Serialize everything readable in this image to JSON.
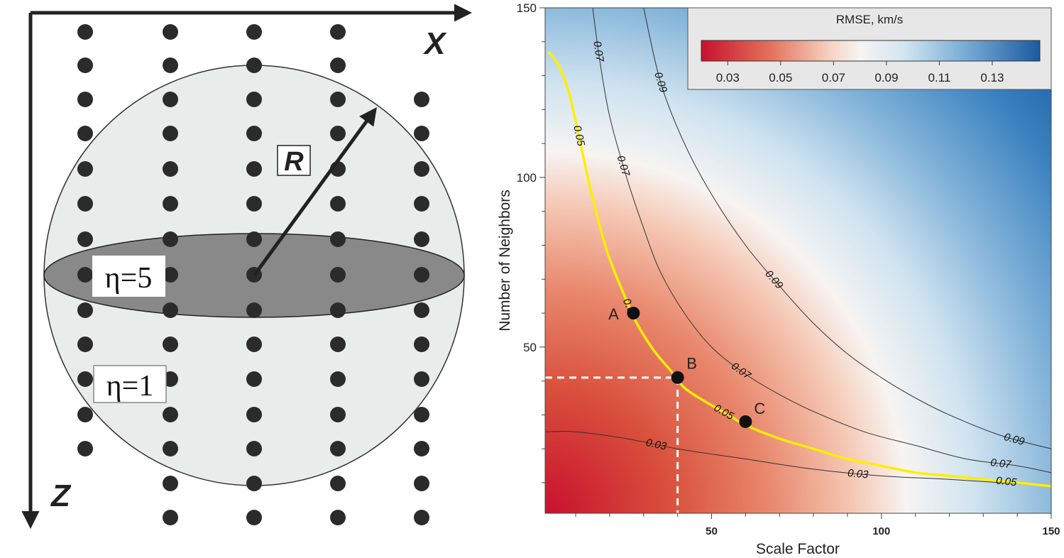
{
  "diagram": {
    "x_axis_label": "X",
    "z_axis_label": "Z",
    "radius_label": "R",
    "eta_inner": "η=5",
    "eta_outer": "η=1"
  },
  "chart_data": {
    "type": "heatmap",
    "xlabel": "Scale Factor",
    "ylabel": "Number of Neighbors",
    "xlim": [
      1,
      150
    ],
    "ylim": [
      1,
      150
    ],
    "x_ticks": [
      50,
      100,
      150
    ],
    "y_ticks": [
      50,
      100,
      150
    ],
    "colorbar": {
      "title": "RMSE, km/s",
      "range": [
        0.02,
        0.148
      ],
      "ticks": [
        "0.03",
        "0.05",
        "0.07",
        "0.09",
        "0.11",
        "0.13"
      ],
      "ticks_values": [
        0.03,
        0.05,
        0.07,
        0.09,
        0.11,
        0.13
      ]
    },
    "contours": [
      {
        "level": "0.03",
        "label": "0.03",
        "points": [
          [
            1,
            25
          ],
          [
            10,
            25
          ],
          [
            25,
            23
          ],
          [
            40,
            20
          ],
          [
            60,
            17
          ],
          [
            80,
            14
          ],
          [
            100,
            12
          ],
          [
            120,
            11
          ],
          [
            150,
            9
          ]
        ]
      },
      {
        "level": "0.05",
        "label": "0.05",
        "highlight": true,
        "points": [
          [
            2,
            137
          ],
          [
            5,
            133
          ],
          [
            8,
            125
          ],
          [
            11,
            112
          ],
          [
            14,
            98
          ],
          [
            17,
            86
          ],
          [
            20,
            76
          ],
          [
            24,
            66
          ],
          [
            28,
            57
          ],
          [
            33,
            49
          ],
          [
            38,
            43
          ],
          [
            42,
            38
          ],
          [
            48,
            34
          ],
          [
            55,
            30
          ],
          [
            60,
            27
          ],
          [
            70,
            23
          ],
          [
            80,
            20
          ],
          [
            90,
            17
          ],
          [
            100,
            15
          ],
          [
            110,
            13
          ],
          [
            120,
            12
          ],
          [
            130,
            11
          ],
          [
            140,
            10
          ],
          [
            150,
            9
          ]
        ]
      },
      {
        "level": "0.07",
        "label": "0.07",
        "points": [
          [
            15,
            150
          ],
          [
            17,
            135
          ],
          [
            20,
            118
          ],
          [
            25,
            100
          ],
          [
            30,
            85
          ],
          [
            35,
            72
          ],
          [
            42,
            60
          ],
          [
            50,
            50
          ],
          [
            60,
            42
          ],
          [
            70,
            36
          ],
          [
            80,
            31
          ],
          [
            95,
            25
          ],
          [
            110,
            21
          ],
          [
            125,
            17
          ],
          [
            140,
            15
          ],
          [
            150,
            13
          ]
        ]
      },
      {
        "level": "0.09",
        "label": "0.09",
        "points": [
          [
            30,
            150
          ],
          [
            35,
            128
          ],
          [
            42,
            110
          ],
          [
            50,
            95
          ],
          [
            60,
            80
          ],
          [
            70,
            68
          ],
          [
            80,
            57
          ],
          [
            90,
            48
          ],
          [
            100,
            41
          ],
          [
            110,
            35
          ],
          [
            120,
            30
          ],
          [
            135,
            24
          ],
          [
            150,
            20
          ]
        ]
      }
    ],
    "points": [
      {
        "label": "A",
        "x": 27,
        "y": 60
      },
      {
        "label": "B",
        "x": 40,
        "y": 41
      },
      {
        "label": "C",
        "x": 60,
        "y": 28
      }
    ],
    "reference_point": {
      "x": 40,
      "y": 41
    }
  }
}
